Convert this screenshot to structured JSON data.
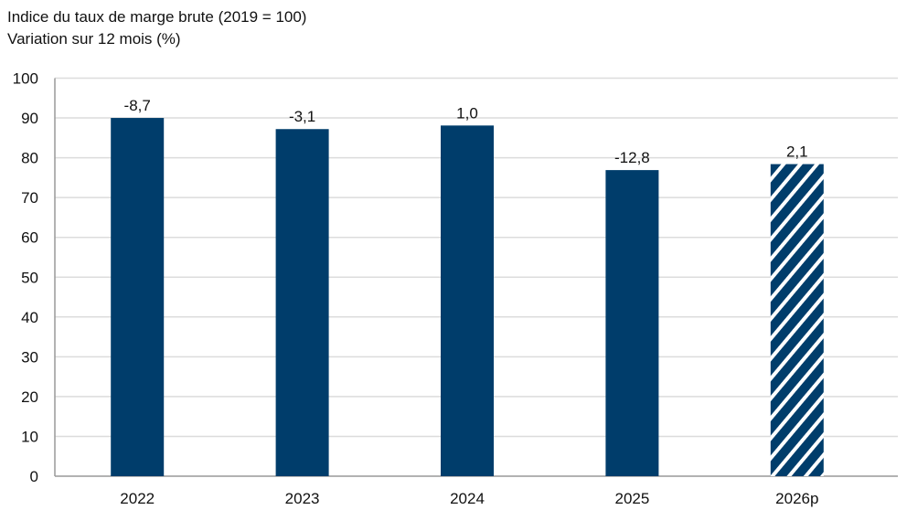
{
  "chart_data": {
    "type": "bar",
    "title": "Indice du taux de marge brute (2019 = 100)",
    "subtitle": "Variation sur 12 mois (%)",
    "categories": [
      "2022",
      "2023",
      "2024",
      "2025",
      "2026p"
    ],
    "values": [
      90.0,
      87.2,
      88.1,
      76.9,
      78.4
    ],
    "data_labels": [
      "-8,7",
      "-3,1",
      "1,0",
      "-12,8",
      "2,1"
    ],
    "forecast": [
      false,
      false,
      false,
      false,
      true
    ],
    "ylim": [
      0,
      100
    ],
    "yticks": [
      0,
      10,
      20,
      30,
      40,
      50,
      60,
      70,
      80,
      90,
      100
    ],
    "grid": true,
    "colors": {
      "bar": "#003d6b",
      "grid": "#dcdcdc",
      "hatch": "#ffffff"
    }
  }
}
